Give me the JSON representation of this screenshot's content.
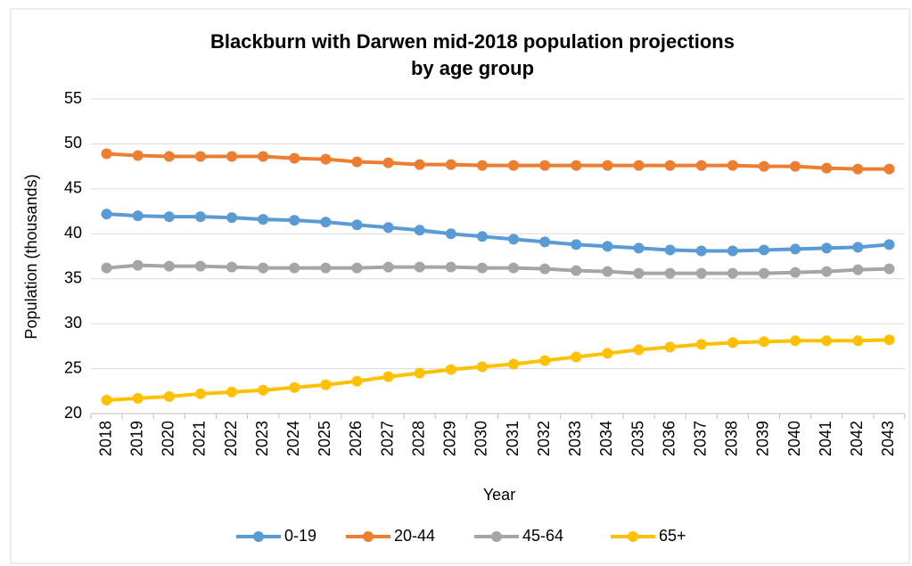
{
  "chart_data": {
    "type": "line",
    "title": [
      "Blackburn with Darwen mid-2018 population projections",
      "by age group"
    ],
    "x_label": "Year",
    "y_label": "Population (thousands)",
    "categories": [
      "2018",
      "2019",
      "2020",
      "2021",
      "2022",
      "2023",
      "2024",
      "2025",
      "2026",
      "2027",
      "2028",
      "2029",
      "2030",
      "2031",
      "2032",
      "2033",
      "2034",
      "2035",
      "2036",
      "2037",
      "2038",
      "2039",
      "2040",
      "2041",
      "2042",
      "2043"
    ],
    "series": [
      {
        "name": "0-19",
        "color": "#5b9bd5",
        "values": [
          42.2,
          42.0,
          41.9,
          41.9,
          41.8,
          41.6,
          41.5,
          41.3,
          41.0,
          40.7,
          40.4,
          40.0,
          39.7,
          39.4,
          39.1,
          38.8,
          38.6,
          38.4,
          38.2,
          38.1,
          38.1,
          38.2,
          38.3,
          38.4,
          38.5,
          38.8
        ]
      },
      {
        "name": "20-44",
        "color": "#ed7d31",
        "values": [
          48.9,
          48.7,
          48.6,
          48.6,
          48.6,
          48.6,
          48.4,
          48.3,
          48.0,
          47.9,
          47.7,
          47.7,
          47.6,
          47.6,
          47.6,
          47.6,
          47.6,
          47.6,
          47.6,
          47.6,
          47.6,
          47.5,
          47.5,
          47.3,
          47.2,
          47.2
        ]
      },
      {
        "name": "45-64",
        "color": "#a5a5a5",
        "values": [
          36.2,
          36.5,
          36.4,
          36.4,
          36.3,
          36.2,
          36.2,
          36.2,
          36.2,
          36.3,
          36.3,
          36.3,
          36.2,
          36.2,
          36.1,
          35.9,
          35.8,
          35.6,
          35.6,
          35.6,
          35.6,
          35.6,
          35.7,
          35.8,
          36.0,
          36.1
        ]
      },
      {
        "name": "65+",
        "color": "#ffc000",
        "values": [
          21.5,
          21.7,
          21.9,
          22.2,
          22.4,
          22.6,
          22.9,
          23.2,
          23.6,
          24.1,
          24.5,
          24.9,
          25.2,
          25.5,
          25.9,
          26.3,
          26.7,
          27.1,
          27.4,
          27.7,
          27.9,
          28.0,
          28.1,
          28.1,
          28.1,
          28.2
        ]
      }
    ],
    "ylim": [
      20,
      55
    ],
    "yticks": [
      20,
      25,
      30,
      35,
      40,
      45,
      50,
      55
    ],
    "grid": true,
    "legend": "bottom"
  }
}
